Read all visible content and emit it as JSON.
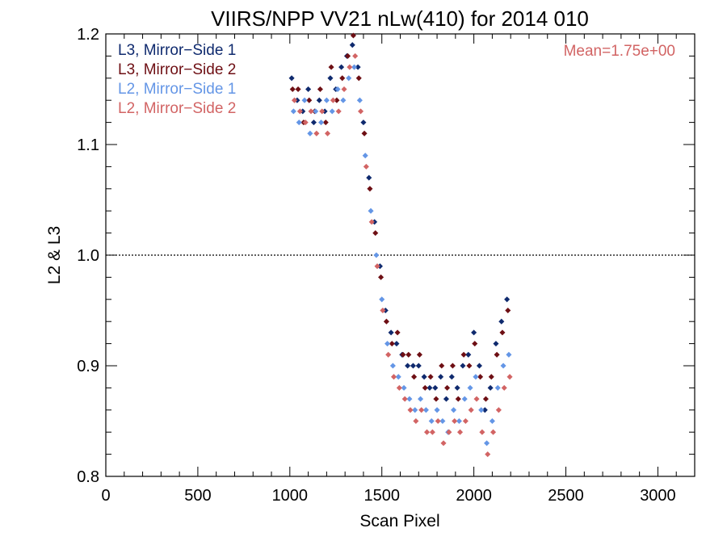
{
  "chart_data": {
    "type": "scatter",
    "title": "VIIRS/NPP VV21 nLw(410) for 2014 010",
    "xlabel": "Scan Pixel",
    "ylabel": "L2 & L3",
    "xlim": [
      0,
      3200
    ],
    "ylim": [
      0.8,
      1.2
    ],
    "xticks": [
      0,
      500,
      1000,
      1500,
      2000,
      2500,
      3000
    ],
    "xtick_labels": [
      "0",
      "500",
      "1000",
      "1500",
      "2000",
      "2500",
      "3000"
    ],
    "yticks": [
      0.8,
      0.9,
      1.0,
      1.1,
      1.2
    ],
    "ytick_labels": [
      "0.8",
      "0.9",
      "1.0",
      "1.1",
      "1.2"
    ],
    "reference_line": {
      "y": 1.0,
      "style": "dotted"
    },
    "annotation": {
      "text": "Mean=1.75e+00",
      "color": "#d26464"
    },
    "legend_position": "top-left",
    "grid": false,
    "series": [
      {
        "name": "L3, Mirror−Side 1",
        "color": "#0f2a6e",
        "points": [
          [
            1010,
            1.16
          ],
          [
            1040,
            1.14
          ],
          [
            1070,
            1.13
          ],
          [
            1100,
            1.15
          ],
          [
            1130,
            1.12
          ],
          [
            1160,
            1.14
          ],
          [
            1190,
            1.13
          ],
          [
            1220,
            1.16
          ],
          [
            1250,
            1.15
          ],
          [
            1280,
            1.17
          ],
          [
            1310,
            1.18
          ],
          [
            1340,
            1.19
          ],
          [
            1370,
            1.17
          ],
          [
            1400,
            1.12
          ],
          [
            1430,
            1.07
          ],
          [
            1460,
            1.03
          ],
          [
            1490,
            0.99
          ],
          [
            1520,
            0.95
          ],
          [
            1550,
            0.93
          ],
          [
            1580,
            0.92
          ],
          [
            1610,
            0.91
          ],
          [
            1640,
            0.9
          ],
          [
            1670,
            0.9
          ],
          [
            1700,
            0.9
          ],
          [
            1730,
            0.89
          ],
          [
            1760,
            0.88
          ],
          [
            1790,
            0.88
          ],
          [
            1820,
            0.89
          ],
          [
            1850,
            0.87
          ],
          [
            1880,
            0.89
          ],
          [
            1910,
            0.88
          ],
          [
            1940,
            0.9
          ],
          [
            1970,
            0.91
          ],
          [
            2000,
            0.93
          ],
          [
            2030,
            0.9
          ],
          [
            2060,
            0.86
          ],
          [
            2090,
            0.88
          ],
          [
            2120,
            0.92
          ],
          [
            2150,
            0.94
          ],
          [
            2180,
            0.96
          ]
        ]
      },
      {
        "name": "L3, Mirror−Side 2",
        "color": "#6e0f14",
        "points": [
          [
            1015,
            1.15
          ],
          [
            1045,
            1.15
          ],
          [
            1075,
            1.12
          ],
          [
            1105,
            1.14
          ],
          [
            1135,
            1.13
          ],
          [
            1165,
            1.15
          ],
          [
            1195,
            1.12
          ],
          [
            1225,
            1.17
          ],
          [
            1255,
            1.14
          ],
          [
            1285,
            1.16
          ],
          [
            1315,
            1.18
          ],
          [
            1345,
            1.2
          ],
          [
            1375,
            1.16
          ],
          [
            1405,
            1.11
          ],
          [
            1435,
            1.06
          ],
          [
            1465,
            1.02
          ],
          [
            1495,
            0.98
          ],
          [
            1525,
            0.94
          ],
          [
            1555,
            0.92
          ],
          [
            1585,
            0.93
          ],
          [
            1615,
            0.91
          ],
          [
            1645,
            0.91
          ],
          [
            1675,
            0.89
          ],
          [
            1705,
            0.91
          ],
          [
            1735,
            0.88
          ],
          [
            1765,
            0.89
          ],
          [
            1795,
            0.87
          ],
          [
            1825,
            0.9
          ],
          [
            1855,
            0.88
          ],
          [
            1885,
            0.9
          ],
          [
            1915,
            0.87
          ],
          [
            1945,
            0.91
          ],
          [
            1975,
            0.9
          ],
          [
            2005,
            0.92
          ],
          [
            2035,
            0.89
          ],
          [
            2065,
            0.87
          ],
          [
            2095,
            0.89
          ],
          [
            2125,
            0.91
          ],
          [
            2155,
            0.93
          ],
          [
            2185,
            0.95
          ]
        ]
      },
      {
        "name": "L2, Mirror−Side 1",
        "color": "#6496e6",
        "points": [
          [
            1020,
            1.13
          ],
          [
            1050,
            1.12
          ],
          [
            1080,
            1.14
          ],
          [
            1110,
            1.11
          ],
          [
            1140,
            1.13
          ],
          [
            1170,
            1.12
          ],
          [
            1200,
            1.14
          ],
          [
            1230,
            1.13
          ],
          [
            1260,
            1.15
          ],
          [
            1290,
            1.14
          ],
          [
            1320,
            1.16
          ],
          [
            1350,
            1.17
          ],
          [
            1380,
            1.14
          ],
          [
            1410,
            1.09
          ],
          [
            1440,
            1.04
          ],
          [
            1470,
            1.0
          ],
          [
            1500,
            0.96
          ],
          [
            1530,
            0.92
          ],
          [
            1560,
            0.9
          ],
          [
            1590,
            0.89
          ],
          [
            1620,
            0.88
          ],
          [
            1650,
            0.87
          ],
          [
            1680,
            0.86
          ],
          [
            1710,
            0.87
          ],
          [
            1740,
            0.86
          ],
          [
            1770,
            0.85
          ],
          [
            1800,
            0.86
          ],
          [
            1830,
            0.85
          ],
          [
            1860,
            0.84
          ],
          [
            1890,
            0.86
          ],
          [
            1920,
            0.85
          ],
          [
            1950,
            0.87
          ],
          [
            1980,
            0.88
          ],
          [
            2010,
            0.89
          ],
          [
            2040,
            0.86
          ],
          [
            2070,
            0.83
          ],
          [
            2100,
            0.85
          ],
          [
            2130,
            0.88
          ],
          [
            2160,
            0.9
          ],
          [
            2190,
            0.91
          ]
        ]
      },
      {
        "name": "L2, Mirror−Side 2",
        "color": "#d26464",
        "points": [
          [
            1025,
            1.14
          ],
          [
            1055,
            1.13
          ],
          [
            1085,
            1.12
          ],
          [
            1115,
            1.13
          ],
          [
            1145,
            1.11
          ],
          [
            1175,
            1.13
          ],
          [
            1205,
            1.11
          ],
          [
            1235,
            1.14
          ],
          [
            1265,
            1.13
          ],
          [
            1295,
            1.15
          ],
          [
            1325,
            1.17
          ],
          [
            1355,
            1.18
          ],
          [
            1385,
            1.13
          ],
          [
            1415,
            1.08
          ],
          [
            1445,
            1.03
          ],
          [
            1475,
            0.99
          ],
          [
            1505,
            0.95
          ],
          [
            1535,
            0.91
          ],
          [
            1565,
            0.89
          ],
          [
            1595,
            0.88
          ],
          [
            1625,
            0.87
          ],
          [
            1655,
            0.86
          ],
          [
            1685,
            0.85
          ],
          [
            1715,
            0.86
          ],
          [
            1745,
            0.84
          ],
          [
            1775,
            0.84
          ],
          [
            1805,
            0.85
          ],
          [
            1835,
            0.83
          ],
          [
            1865,
            0.84
          ],
          [
            1895,
            0.85
          ],
          [
            1925,
            0.84
          ],
          [
            1955,
            0.85
          ],
          [
            1985,
            0.86
          ],
          [
            2015,
            0.87
          ],
          [
            2045,
            0.84
          ],
          [
            2075,
            0.82
          ],
          [
            2105,
            0.84
          ],
          [
            2135,
            0.86
          ],
          [
            2165,
            0.88
          ],
          [
            2195,
            0.89
          ]
        ]
      }
    ]
  }
}
